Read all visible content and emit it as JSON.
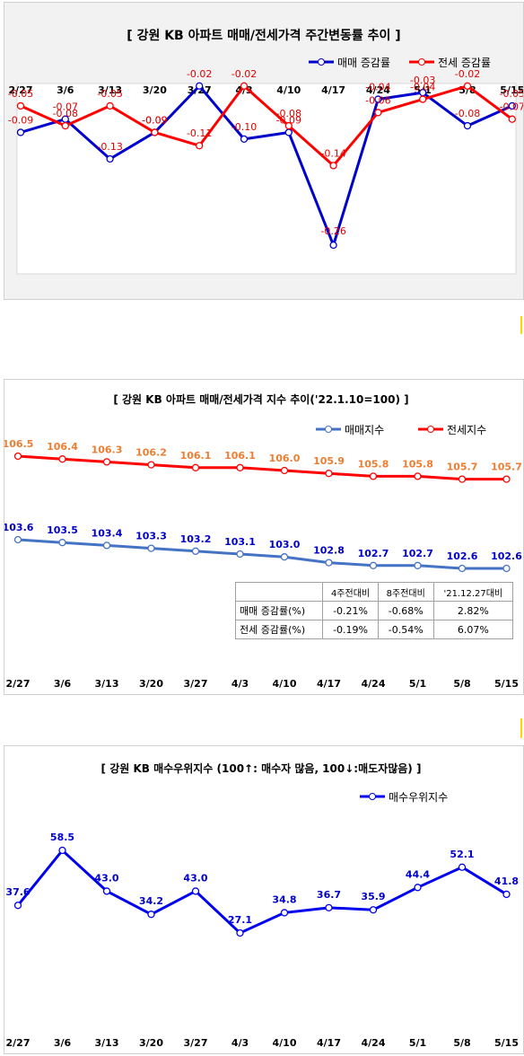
{
  "charts": {
    "weekly_change": {
      "title": "[  강원  KB 아파트 매매/전세가격 주간변동률 추이  ]",
      "legend": [
        "매매 증감률",
        "전세 증감률"
      ]
    },
    "price_index": {
      "title": "[  강원  KB 아파트 매매/전세가격 지수 추이('22.1.10=100)  ]",
      "legend": [
        "매매지수",
        "전세지수"
      ],
      "table": {
        "headers": [
          "",
          "4주전대비",
          "8주전대비",
          "'21.12.27대비"
        ],
        "rows": [
          [
            "매매 증감률(%)",
            "-0.21%",
            "-0.68%",
            "2.82%"
          ],
          [
            "전세 증감률(%)",
            "-0.19%",
            "-0.54%",
            "6.07%"
          ]
        ]
      }
    },
    "buyer_index": {
      "title": "[  강원  KB 매수우위지수 (100↑: 매수자 많음, 100↓:매도자많음)  ]",
      "legend": [
        "매수우위지수"
      ]
    }
  },
  "chart_data": [
    {
      "type": "line",
      "title": "[  강원  KB 아파트 매매/전세가격 주간변동률 추이  ]",
      "categories": [
        "2/27",
        "3/6",
        "3/13",
        "3/20",
        "3/27",
        "4/3",
        "4/10",
        "4/17",
        "4/24",
        "5/1",
        "5/8",
        "5/15"
      ],
      "series": [
        {
          "name": "매매 증감률",
          "color": "#0000cc",
          "values": [
            -0.09,
            -0.07,
            -0.13,
            -0.09,
            -0.02,
            -0.1,
            -0.09,
            -0.26,
            -0.04,
            -0.03,
            -0.08,
            -0.05
          ]
        },
        {
          "name": "전세 증감률",
          "color": "#ff0000",
          "values": [
            -0.05,
            -0.08,
            -0.05,
            -0.09,
            -0.11,
            -0.02,
            -0.08,
            -0.14,
            -0.06,
            -0.04,
            -0.02,
            -0.07
          ]
        }
      ],
      "ylim": [
        -0.28,
        0.0
      ],
      "legend_position": "top-right"
    },
    {
      "type": "line",
      "title": "[  강원  KB 아파트 매매/전세가격 지수 추이('22.1.10=100)  ]",
      "categories": [
        "2/27",
        "3/6",
        "3/13",
        "3/20",
        "3/27",
        "4/3",
        "4/10",
        "4/17",
        "4/24",
        "5/1",
        "5/8",
        "5/15"
      ],
      "series": [
        {
          "name": "매매지수",
          "color": "#4472c4",
          "label_color": "#0000cc",
          "values": [
            103.6,
            103.5,
            103.4,
            103.3,
            103.2,
            103.1,
            103.0,
            102.8,
            102.7,
            102.7,
            102.6,
            102.6
          ]
        },
        {
          "name": "전세지수",
          "color": "#ff0000",
          "label_color": "#ed7d31",
          "values": [
            106.5,
            106.4,
            106.3,
            106.2,
            106.1,
            106.1,
            106.0,
            105.9,
            105.8,
            105.8,
            105.7,
            105.7
          ]
        }
      ],
      "legend_position": "top-right"
    },
    {
      "type": "line",
      "title": "[  강원  KB 매수우위지수 (100↑: 매수자 많음, 100↓:매도자많음)  ]",
      "categories": [
        "2/27",
        "3/6",
        "3/13",
        "3/20",
        "3/27",
        "4/3",
        "4/10",
        "4/17",
        "4/24",
        "5/1",
        "5/8",
        "5/15"
      ],
      "series": [
        {
          "name": "매수우위지수",
          "color": "#0000ee",
          "values": [
            37.6,
            58.5,
            43.0,
            34.2,
            43.0,
            27.1,
            34.8,
            36.7,
            35.9,
            44.4,
            52.1,
            41.8
          ]
        }
      ],
      "ylim": [
        20,
        65
      ],
      "legend_position": "top-right"
    }
  ]
}
